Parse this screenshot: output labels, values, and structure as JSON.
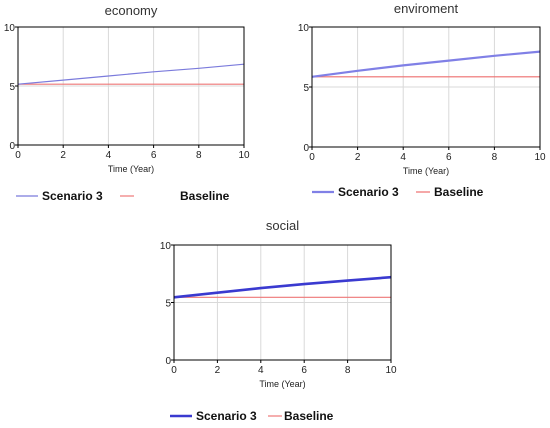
{
  "chart_data": [
    {
      "type": "line",
      "title": "economy",
      "xlabel": "Time (Year)",
      "ylabel": "",
      "xlim": [
        0,
        10
      ],
      "ylim": [
        0,
        10
      ],
      "x_ticks": [
        0,
        2,
        4,
        6,
        8,
        10
      ],
      "y_ticks": [
        0,
        5,
        10
      ],
      "grid": true,
      "legend_position": "bottom",
      "series": [
        {
          "name": "Scenario 3",
          "color": "#7b7bdc",
          "x": [
            0,
            2,
            4,
            6,
            8,
            10
          ],
          "y": [
            5.15,
            5.5,
            5.85,
            6.2,
            6.5,
            6.85
          ]
        },
        {
          "name": "Baseline",
          "color": "#ee7777",
          "x": [
            0,
            2,
            4,
            6,
            8,
            10
          ],
          "y": [
            5.15,
            5.15,
            5.15,
            5.15,
            5.15,
            5.15
          ]
        }
      ]
    },
    {
      "type": "line",
      "title": "enviroment",
      "xlabel": "Time (Year)",
      "ylabel": "",
      "xlim": [
        0,
        10
      ],
      "ylim": [
        0,
        10
      ],
      "x_ticks": [
        0,
        2,
        4,
        6,
        8,
        10
      ],
      "y_ticks": [
        0,
        5,
        10
      ],
      "grid": true,
      "legend_position": "bottom",
      "series": [
        {
          "name": "Scenario 3",
          "color": "#8080e6",
          "x": [
            0,
            2,
            4,
            6,
            8,
            10
          ],
          "y": [
            5.85,
            6.35,
            6.8,
            7.2,
            7.6,
            7.95
          ]
        },
        {
          "name": "Baseline",
          "color": "#ee6e6e",
          "x": [
            0,
            2,
            4,
            6,
            8,
            10
          ],
          "y": [
            5.85,
            5.85,
            5.85,
            5.85,
            5.85,
            5.85
          ]
        }
      ]
    },
    {
      "type": "line",
      "title": "social",
      "xlabel": "Time (Year)",
      "ylabel": "",
      "xlim": [
        0,
        10
      ],
      "ylim": [
        0,
        10
      ],
      "x_ticks": [
        0,
        2,
        4,
        6,
        8,
        10
      ],
      "y_ticks": [
        0,
        5,
        10
      ],
      "grid": true,
      "legend_position": "bottom",
      "series": [
        {
          "name": "Scenario 3",
          "color": "#3a3ad0",
          "x": [
            0,
            2,
            4,
            6,
            8,
            10
          ],
          "y": [
            5.45,
            5.85,
            6.25,
            6.6,
            6.9,
            7.2
          ]
        },
        {
          "name": "Baseline",
          "color": "#ee7777",
          "x": [
            0,
            2,
            4,
            6,
            8,
            10
          ],
          "y": [
            5.45,
            5.45,
            5.45,
            5.45,
            5.45,
            5.45
          ]
        }
      ]
    }
  ]
}
